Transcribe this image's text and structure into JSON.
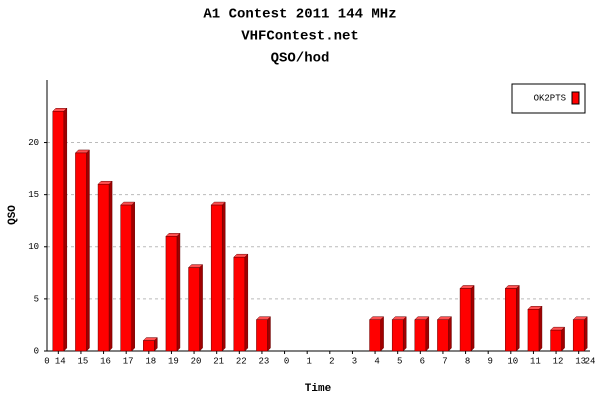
{
  "chart_data": {
    "type": "bar",
    "title": "A1 Contest 2011 144 MHz",
    "subtitle": "VHFContest.net",
    "chart_label": "QSO/hod",
    "y_label": "QSO",
    "x_label": "Time",
    "categories": [
      "14",
      "15",
      "16",
      "17",
      "18",
      "19",
      "20",
      "21",
      "22",
      "23",
      "0",
      "1",
      "2",
      "3",
      "4",
      "5",
      "6",
      "7",
      "8",
      "9",
      "10",
      "11",
      "12",
      "13"
    ],
    "series": [
      {
        "name": "OK2PTS",
        "color": "#ff0000",
        "values": [
          23,
          19,
          16,
          14,
          1,
          11,
          8,
          14,
          9,
          3,
          0,
          0,
          0,
          0,
          3,
          3,
          3,
          3,
          6,
          0,
          6,
          4,
          2,
          3
        ]
      }
    ],
    "xlim": [
      0,
      24
    ],
    "xticks": [
      0,
      24
    ],
    "ylim": [
      0,
      26
    ],
    "yticks": [
      0,
      5,
      10,
      15,
      20
    ],
    "grid": true,
    "legend": "top-right"
  }
}
